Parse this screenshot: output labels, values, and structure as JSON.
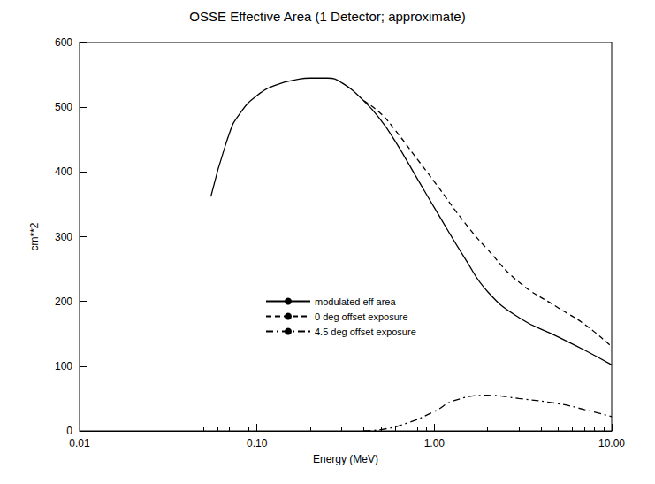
{
  "chart_data": {
    "type": "line",
    "title": "OSSE Effective Area (1 Detector; approximate)",
    "x_label": "Energy (MeV)",
    "y_label": "cm**2",
    "log": "x",
    "grid": false,
    "legend": "center",
    "xlim": [
      0.01,
      10
    ],
    "xticks": [
      0.01,
      {
        "value": 0.1,
        "label": "0.10"
      },
      {
        "value": 1,
        "label": "1.00"
      },
      {
        "value": 10,
        "label": "10.00"
      }
    ],
    "ylim": [
      0,
      600
    ],
    "yticks": [
      0,
      100,
      200,
      300,
      400,
      500,
      600
    ],
    "series": [
      {
        "name": "modulated eff area",
        "color": "#000000",
        "line_style": "solid",
        "x": [
          0.055,
          0.07,
          0.08,
          0.1,
          0.13,
          0.17,
          0.2,
          0.25,
          0.3,
          0.4,
          0.5,
          0.6,
          0.8,
          1.0,
          1.5,
          2,
          3,
          5,
          7,
          10
        ],
        "values": [
          362,
          460,
          490,
          518,
          535,
          543,
          545,
          545,
          538,
          510,
          480,
          448,
          390,
          345,
          265,
          215,
          175,
          145,
          125,
          102
        ]
      },
      {
        "name": "0 deg offset exposure",
        "color": "#000000",
        "line_style": "dashed",
        "x": [
          0.4,
          0.5,
          0.6,
          0.8,
          1.0,
          1.5,
          2,
          3,
          5,
          7,
          10
        ],
        "values": [
          510,
          490,
          465,
          420,
          385,
          320,
          280,
          230,
          190,
          165,
          130
        ]
      },
      {
        "name": "4.5 deg offset exposure",
        "color": "#000000",
        "line_style": "dashdot",
        "x": [
          0.4,
          0.5,
          0.7,
          1.0,
          1.3,
          2,
          3,
          5,
          7,
          10
        ],
        "values": [
          0,
          2,
          12,
          30,
          47,
          55,
          50,
          42,
          33,
          22
        ]
      }
    ]
  }
}
